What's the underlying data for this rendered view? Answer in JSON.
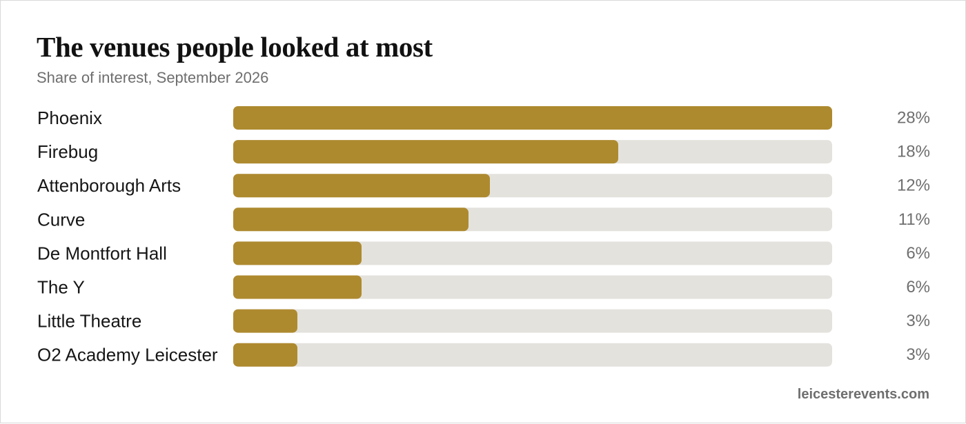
{
  "chart_data": {
    "type": "bar",
    "orientation": "horizontal",
    "title": "The venues people looked at most",
    "subtitle": "Share of interest, September 2026",
    "categories": [
      "Phoenix",
      "Firebug",
      "Attenborough Arts",
      "Curve",
      "De Montfort Hall",
      "The Y",
      "Little Theatre",
      "O2 Academy Leicester"
    ],
    "values": [
      28,
      18,
      12,
      11,
      6,
      6,
      3,
      3
    ],
    "value_labels": [
      "28%",
      "18%",
      "12%",
      "11%",
      "6%",
      "6%",
      "3%",
      "3%"
    ],
    "unit": "%",
    "xlim": [
      0,
      28
    ],
    "grid": false,
    "legend": "none",
    "colors": {
      "bar": "#ae8a2f",
      "track": "#e4e2dd"
    }
  },
  "footer": {
    "source": "leicesterevents.com"
  }
}
